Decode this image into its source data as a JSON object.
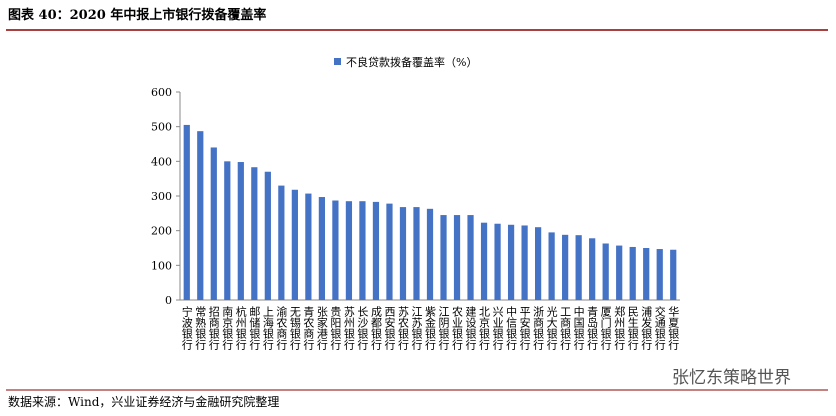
{
  "header": {
    "title": "图表 40：2020 年中报上市银行拨备覆盖率"
  },
  "chart_data": {
    "type": "bar",
    "legend": "不良贷款拨备覆盖率（%）",
    "categories": [
      "宁波银行",
      "常熟银行",
      "招商银行",
      "南京银行",
      "杭州银行",
      "邮储银行",
      "上海银行",
      "渝农商行",
      "无锡银行",
      "青农商行",
      "张家港行",
      "贵阳银行",
      "苏州银行",
      "长沙银行",
      "成都银行",
      "西安银行",
      "苏农银行",
      "江苏银行",
      "紫金银行",
      "江阴银行",
      "农业银行",
      "建设银行",
      "北京银行",
      "兴业银行",
      "中信银行",
      "平安银行",
      "浙商银行",
      "光大银行",
      "工商银行",
      "中国银行",
      "青岛银行",
      "厦门银行",
      "郑州银行",
      "民生银行",
      "浦发银行",
      "交通银行",
      "华夏银行"
    ],
    "values": [
      505,
      487,
      440,
      400,
      398,
      383,
      370,
      330,
      318,
      307,
      297,
      287,
      285,
      285,
      283,
      278,
      268,
      268,
      263,
      245,
      245,
      245,
      223,
      220,
      217,
      215,
      210,
      195,
      188,
      187,
      178,
      163,
      157,
      153,
      150,
      147,
      145
    ],
    "color": "#4472c4",
    "ylim": [
      0,
      600
    ],
    "yticks": [
      0,
      100,
      200,
      300,
      400,
      500,
      600
    ],
    "grid": false
  },
  "footer": {
    "source": "数据来源：Wind，兴业证券经济与金融研究院整理",
    "watermark": "张忆东策略世界"
  }
}
